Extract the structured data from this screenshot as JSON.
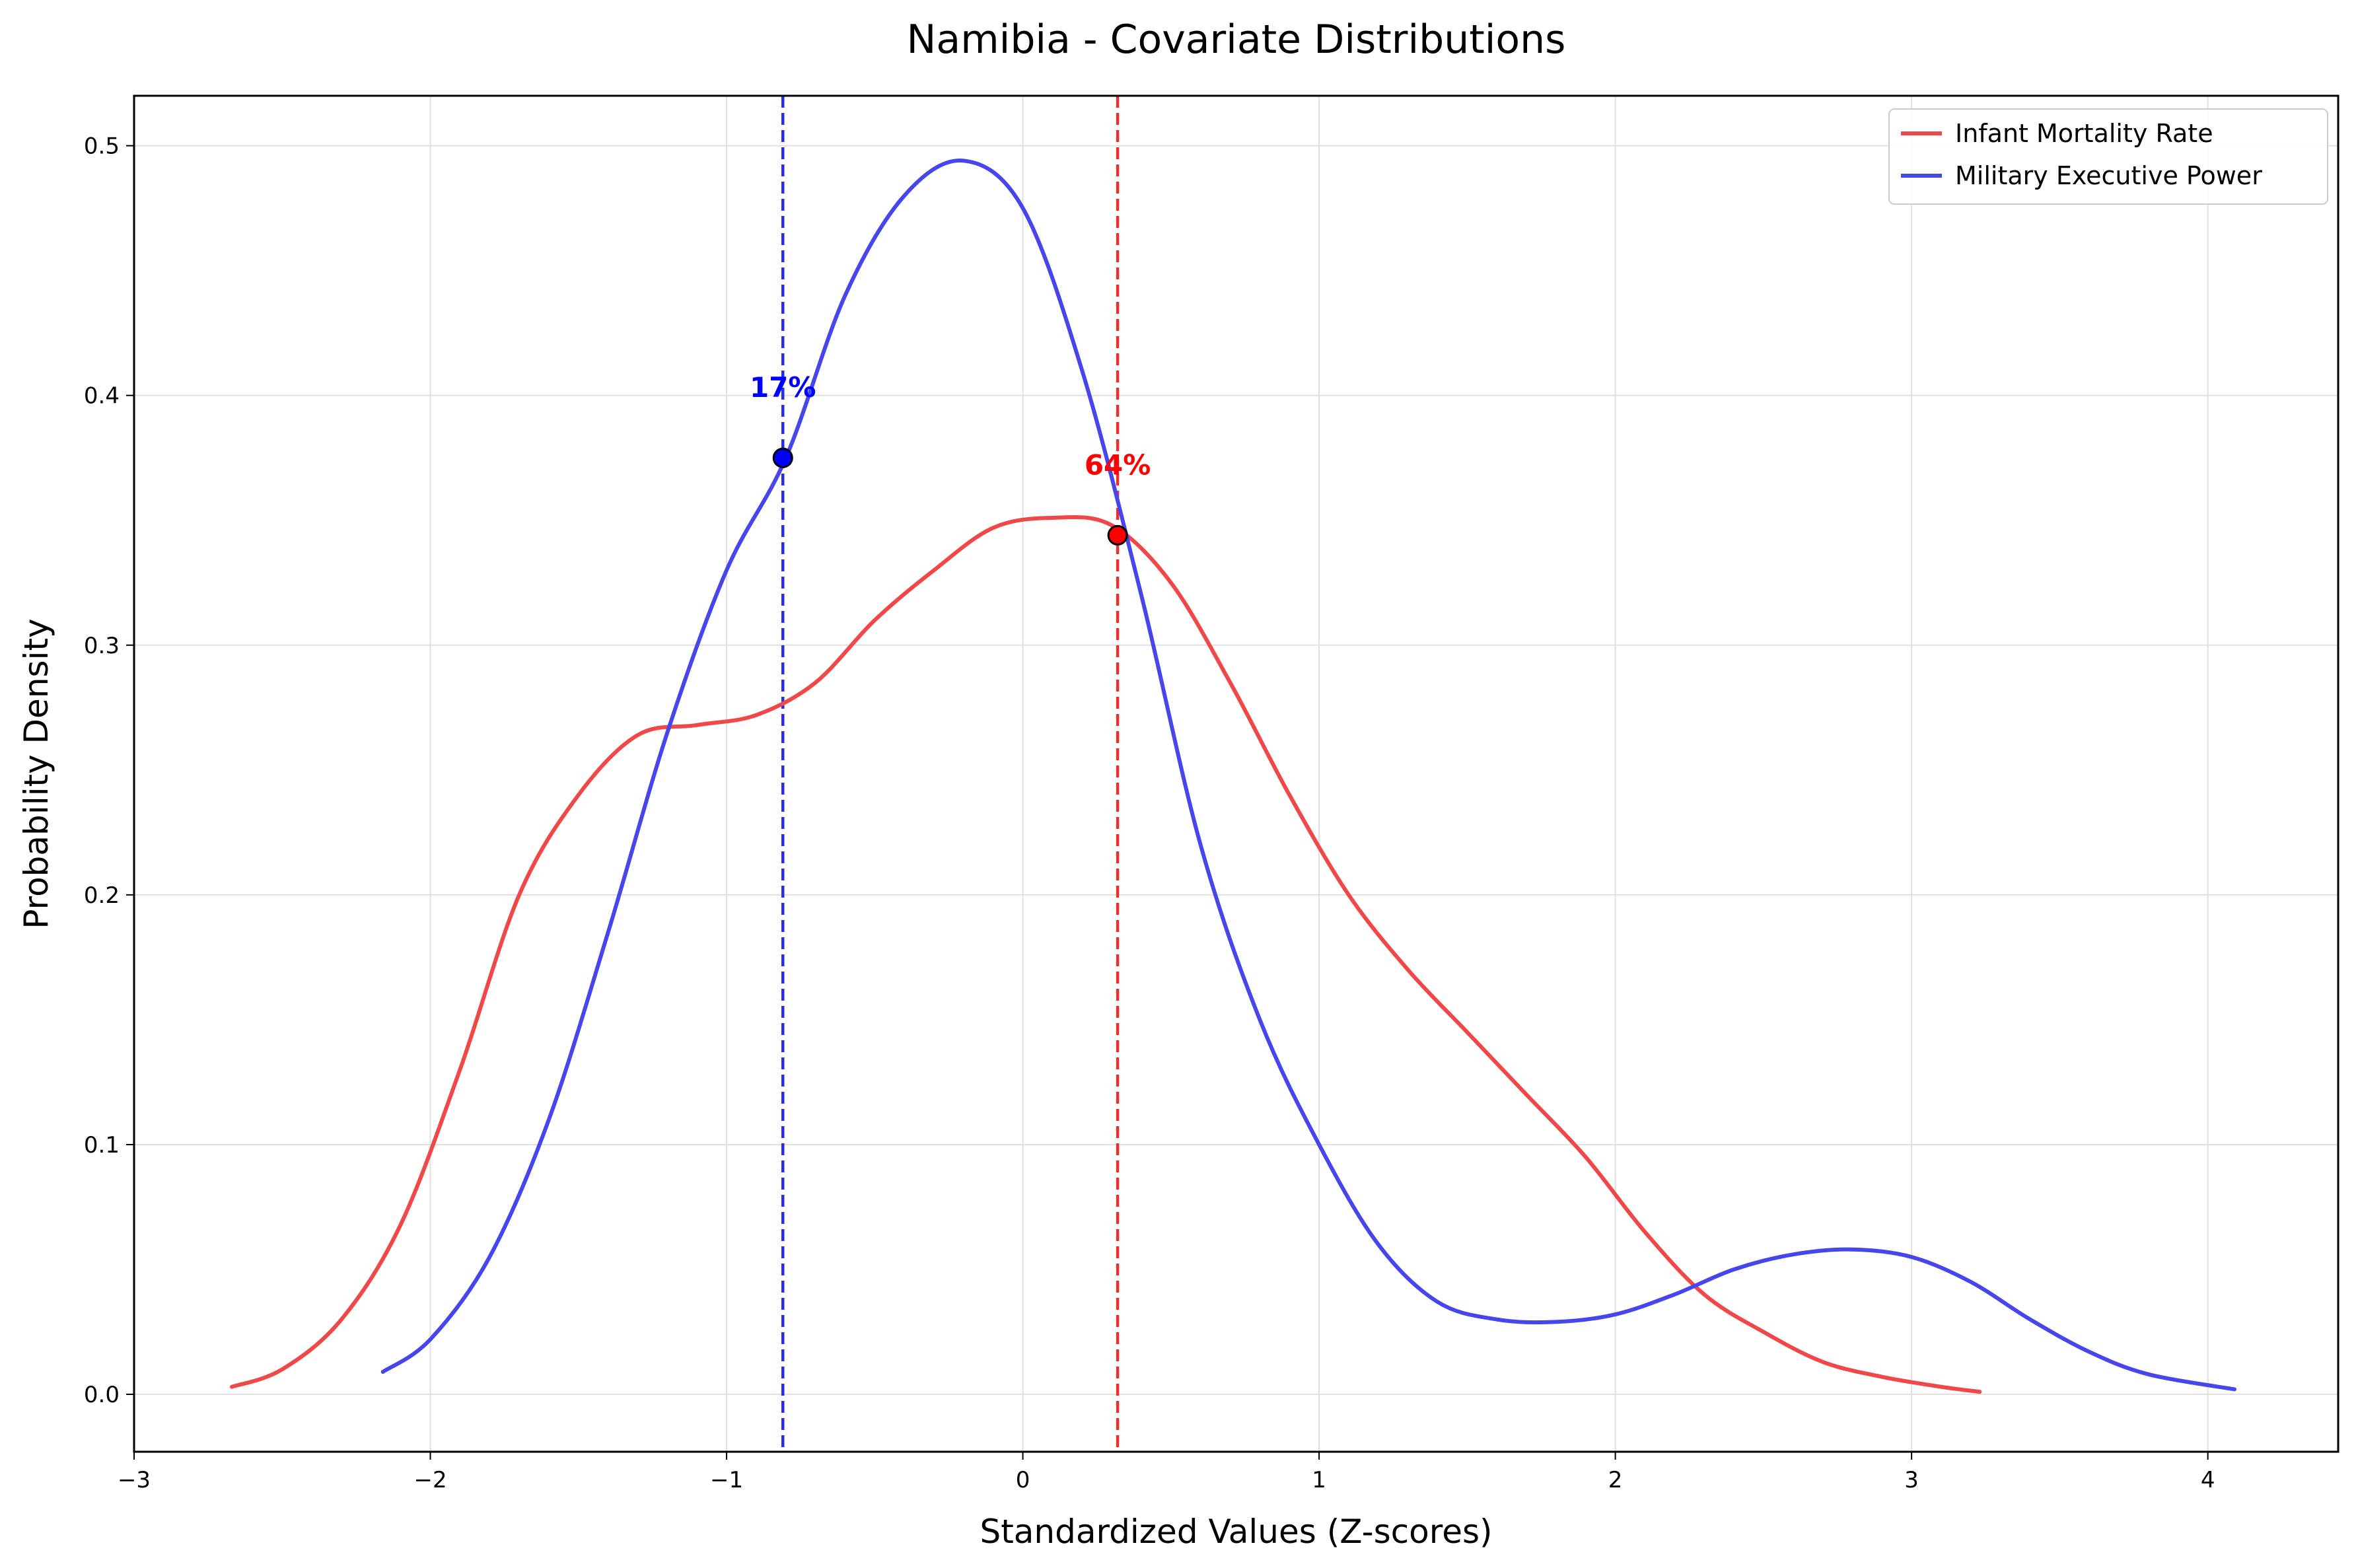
{
  "chart_data": {
    "type": "line",
    "title": "Namibia - Covariate Distributions",
    "xlabel": "Standardized Values (Z-scores)",
    "ylabel": "Probability Density",
    "xlim": [
      -3,
      4.44
    ],
    "ylim": [
      -0.023,
      0.52
    ],
    "x_ticks": [
      -3,
      -2,
      -1,
      0,
      1,
      2,
      3,
      4
    ],
    "x_tick_labels": [
      "−3",
      "−2",
      "−1",
      "0",
      "1",
      "2",
      "3",
      "4"
    ],
    "y_ticks": [
      0.0,
      0.1,
      0.2,
      0.3,
      0.4,
      0.5
    ],
    "y_tick_labels": [
      "0.0",
      "0.1",
      "0.2",
      "0.3",
      "0.4",
      "0.5"
    ],
    "grid": true,
    "legend_position": "top-right",
    "series": [
      {
        "name": "Infant Mortality Rate",
        "color": "#f04848",
        "x": [
          -2.67,
          -2.5,
          -2.3,
          -2.1,
          -1.9,
          -1.7,
          -1.5,
          -1.3,
          -1.1,
          -0.9,
          -0.7,
          -0.5,
          -0.3,
          -0.1,
          0.1,
          0.3,
          0.5,
          0.7,
          0.9,
          1.1,
          1.3,
          1.5,
          1.7,
          1.9,
          2.1,
          2.3,
          2.5,
          2.7,
          2.9,
          3.1,
          3.23
        ],
        "y": [
          0.003,
          0.01,
          0.03,
          0.068,
          0.13,
          0.2,
          0.24,
          0.264,
          0.268,
          0.272,
          0.285,
          0.31,
          0.33,
          0.347,
          0.351,
          0.348,
          0.325,
          0.285,
          0.24,
          0.2,
          0.17,
          0.145,
          0.12,
          0.095,
          0.065,
          0.04,
          0.025,
          0.013,
          0.007,
          0.003,
          0.001
        ]
      },
      {
        "name": "Military Executive Power",
        "color": "#4646ec",
        "x": [
          -2.16,
          -2.0,
          -1.8,
          -1.6,
          -1.4,
          -1.2,
          -1.0,
          -0.8,
          -0.6,
          -0.4,
          -0.2,
          0.0,
          0.2,
          0.4,
          0.6,
          0.8,
          1.0,
          1.2,
          1.4,
          1.6,
          1.8,
          2.0,
          2.2,
          2.4,
          2.6,
          2.8,
          3.0,
          3.2,
          3.4,
          3.6,
          3.8,
          4.09
        ],
        "y": [
          0.009,
          0.022,
          0.055,
          0.11,
          0.185,
          0.265,
          0.33,
          0.375,
          0.44,
          0.48,
          0.494,
          0.475,
          0.41,
          0.32,
          0.22,
          0.15,
          0.1,
          0.06,
          0.037,
          0.03,
          0.029,
          0.032,
          0.04,
          0.05,
          0.056,
          0.058,
          0.055,
          0.045,
          0.03,
          0.017,
          0.008,
          0.002
        ]
      }
    ],
    "markers": [
      {
        "series": "Infant Mortality Rate",
        "x": 0.32,
        "y": 0.344,
        "label": "64%",
        "color": "#ff0000",
        "line_color": "#e83030"
      },
      {
        "series": "Military Executive Power",
        "x": -0.81,
        "y": 0.375,
        "label": "17%",
        "color": "#0000ff",
        "line_color": "#2a2aee"
      }
    ]
  }
}
